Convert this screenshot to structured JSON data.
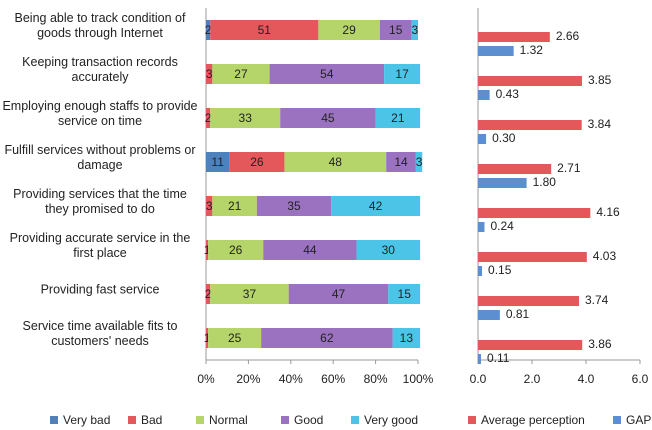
{
  "chart_data": [
    {
      "type": "stacked-bar",
      "categories": [
        "Being able to track condition of goods through Internet",
        "Keeping transaction records accurately",
        "Employing enough staffs to provide service on time",
        "Fulfill services without problems or damage",
        "Providing services that the time they promised to do",
        "Providing accurate service in the first place",
        "Providing fast service",
        "Service time available fits to customers' needs"
      ],
      "series": [
        {
          "name": "Very bad",
          "color": "#4f81bd",
          "values": [
            2,
            0,
            0,
            11,
            0,
            0,
            0,
            0
          ]
        },
        {
          "name": "Bad",
          "color": "#e4575a",
          "values": [
            51,
            3,
            2,
            26,
            3,
            1,
            2,
            1
          ]
        },
        {
          "name": "Normal",
          "color": "#b5d56a",
          "values": [
            29,
            27,
            33,
            48,
            21,
            26,
            37,
            25
          ]
        },
        {
          "name": "Good",
          "color": "#9b72c0",
          "values": [
            15,
            54,
            45,
            14,
            35,
            44,
            47,
            62
          ]
        },
        {
          "name": "Very good",
          "color": "#4cc4e8",
          "values": [
            3,
            17,
            21,
            3,
            42,
            30,
            15,
            13
          ]
        }
      ],
      "xlim": [
        0,
        100
      ],
      "xticks": [
        {
          "value": 0,
          "label": "0%"
        },
        {
          "value": 20,
          "label": "20%"
        },
        {
          "value": 40,
          "label": "40%"
        },
        {
          "value": 60,
          "label": "60%"
        },
        {
          "value": 80,
          "label": "80%"
        },
        {
          "value": 100,
          "label": "100%"
        }
      ]
    },
    {
      "type": "grouped-bar",
      "series": [
        {
          "name": "Average perception",
          "color": "#e4575a",
          "values": [
            2.66,
            3.85,
            3.84,
            2.71,
            4.16,
            4.03,
            3.74,
            3.86
          ],
          "value_labels": [
            "2.66",
            "3.85",
            "3.84",
            "2.71",
            "4.16",
            "4.03",
            "3.74",
            "3.86"
          ]
        },
        {
          "name": "GAP",
          "color": "#5b8fd0",
          "values": [
            1.32,
            0.43,
            0.3,
            1.8,
            0.24,
            0.15,
            0.81,
            0.11
          ],
          "value_labels": [
            "1.32",
            "0.43",
            "0.30",
            "1.80",
            "0.24",
            "0.15",
            "0.81",
            "0.11"
          ]
        }
      ],
      "xlim": [
        0,
        6
      ],
      "xticks": [
        {
          "value": 0,
          "label": "0.0"
        },
        {
          "value": 2,
          "label": "2.0"
        },
        {
          "value": 4,
          "label": "4.0"
        },
        {
          "value": 6,
          "label": "6.0"
        }
      ]
    }
  ]
}
